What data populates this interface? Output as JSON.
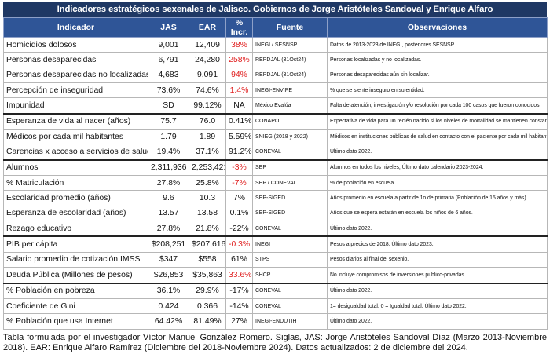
{
  "title": "Indicadores estratégicos sexenales de Jalisco. Gobiernos de Jorge Aristóteles Sandoval y Enrique Alfaro",
  "table": {
    "header": [
      "Indicador",
      "JAS",
      "EAR",
      "% Incr.",
      "Fuente",
      "Observaciones"
    ],
    "groups": [
      [
        {
          "cells": [
            "Homicidios dolosos",
            "9,001",
            "12,409",
            "38%",
            "INEGI / SESNSP",
            "Datos de 2013-2023 de INEGI, posteriores SESNSP."
          ],
          "alert": true
        },
        {
          "cells": [
            "Personas desaparecidas",
            "6,791",
            "24,280",
            "258%",
            "REPDJAL (31Oct24)",
            "Personas localizadas y no localizadas."
          ],
          "alert": true
        },
        {
          "cells": [
            "Personas desaparecidas no localizadas",
            "4,683",
            "9,091",
            "94%",
            "REPDJAL (31Oct24)",
            "Personas desaparecidas aún sin localizar."
          ],
          "alert": true
        },
        {
          "cells": [
            "Percepción de inseguridad",
            "73.6%",
            "74.6%",
            "1.4%",
            "INEGI-ENVIPE",
            "% que se siente inseguro en su entidad."
          ],
          "alert": true
        },
        {
          "cells": [
            "Impunidad",
            "SD",
            "99.12%",
            "NA",
            "México Evalúa",
            "Falta de atención, investigación y/o resolución por cada 100 casos que fueron conocidos"
          ],
          "alert": false
        }
      ],
      [
        {
          "cells": [
            "Esperanza de vida al nacer (años)",
            "75.7",
            "76.0",
            "0.41%",
            "CONAPO",
            "Expectativa de vida para un recién nacido si los niveles de mortalidad se mantienen constantes."
          ],
          "alert": false
        },
        {
          "cells": [
            "Médicos por cada mil habitantes",
            "1.79",
            "1.89",
            "5.59%",
            "SNIEG (2018 y 2022)",
            "Médicos en instituciones públicas de salud en contacto con el paciente por cada mil habitantes."
          ],
          "alert": false
        },
        {
          "cells": [
            "Carencias x acceso a servicios de salud",
            "19.4%",
            "37.1%",
            "91.2%",
            "CONEVAL",
            "Último dato 2022."
          ],
          "alert": false
        }
      ],
      [
        {
          "cells": [
            "Alumnos",
            "2,311,936",
            "2,253,421",
            "-3%",
            "SEP",
            "Alumnos en todos los niveles; Último dato calendario 2023-2024."
          ],
          "alert": true
        },
        {
          "cells": [
            "% Matriculación",
            "27.8%",
            "25.8%",
            "-7%",
            "SEP / CONEVAL",
            "% de población en escuela."
          ],
          "alert": true
        },
        {
          "cells": [
            "Escolaridad promedio (años)",
            "9.6",
            "10.3",
            "7%",
            "SEP-SIGED",
            "Años promedio en escuela a partir de 1o de primaria (Población de 15 años y más)."
          ],
          "alert": false
        },
        {
          "cells": [
            "Esperanza de escolaridad (años)",
            "13.57",
            "13.58",
            "0.1%",
            "SEP-SIGED",
            "Años que se espera estarán en escuela los niños de 6 años."
          ],
          "alert": false
        },
        {
          "cells": [
            "Rezago educativo",
            "27.8%",
            "21.8%",
            "-22%",
            "CONEVAL",
            "Último dato 2022."
          ],
          "alert": false
        }
      ],
      [
        {
          "cells": [
            "PIB per cápita",
            "$208,251",
            "$207,616",
            "-0.3%",
            "INEGI",
            "Pesos a precios de 2018; Último dato 2023."
          ],
          "alert": true
        },
        {
          "cells": [
            "Salario promedio de cotización IMSS",
            "$347",
            "$558",
            "61%",
            "STPS",
            "Pesos diarios al final del sexenio."
          ],
          "alert": false
        },
        {
          "cells": [
            "Deuda Pública (Millones de pesos)",
            "$26,853",
            "$35,863",
            "33.6%",
            "SHCP",
            "No incluye compromisos de inversiones publico-privadas."
          ],
          "alert": true
        }
      ],
      [
        {
          "cells": [
            "% Población en pobreza",
            "36.1%",
            "29.9%",
            "-17%",
            "CONEVAL",
            "Último dato 2022."
          ],
          "alert": false
        },
        {
          "cells": [
            "Coeficiente de Gini",
            "0.424",
            "0.366",
            "-14%",
            "CONEVAL",
            "1= desigualdad total; 0 = Igualdad total; Último dato 2022."
          ],
          "alert": false
        },
        {
          "cells": [
            "% Población que usa Internet",
            "64.42%",
            "81.49%",
            "27%",
            "INEGI-ENDUTIH",
            "Último dato 2022."
          ],
          "alert": false
        }
      ]
    ]
  },
  "note": "Tabla formulada por el investigador Víctor Manuel González Romero. Siglas, JAS: Jorge Aristóteles Sandoval Díaz (Marzo 2013-Noviembre 2018). EAR: Enrique Alfaro Ramírez (Diciembre del 2018-Noviembre 2024). Datos actualizados: 2 de diciembre del 2024."
}
